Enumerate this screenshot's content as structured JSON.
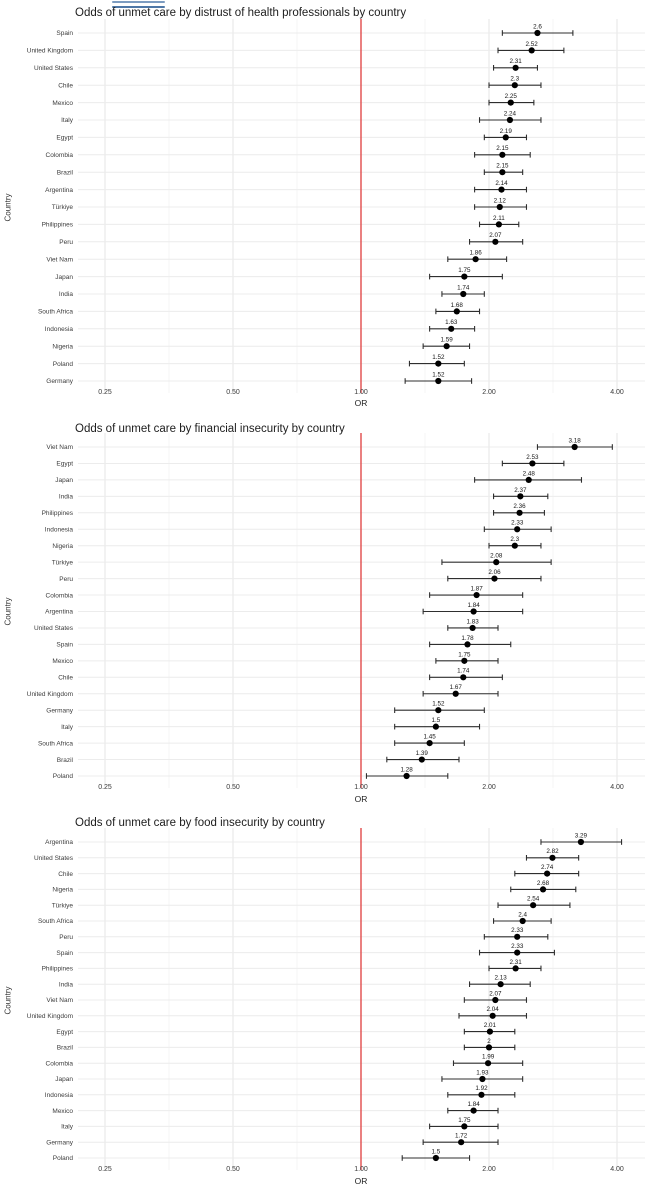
{
  "page": {
    "background": "#ffffff"
  },
  "decoration": {
    "type": "double-horizontal-line"
  },
  "colors": {
    "reference_line": "#e14b4b",
    "point": "#000000",
    "error_bar": "#2f2f2f",
    "grid_row": "#ececec",
    "grid_major": "#e5e5e5",
    "grid_minor": "#f4f4f4",
    "decoration_top": "#7d9cc0",
    "decoration_bottom": "#4e77a6",
    "tick_text": "#3a3a3a",
    "country_text": "#3c3c3c",
    "value_text": "#141414"
  },
  "chart_data": [
    {
      "type": "scatter",
      "subtype": "forest-plot",
      "title": "Odds of unmet care by distrust of health professionals by country",
      "xlabel": "OR",
      "ylabel": "Country",
      "xscale": "log2",
      "xlim": [
        0.21,
        4.6
      ],
      "xticks": [
        0.25,
        0.5,
        1,
        2,
        4
      ],
      "xtick_labels": [
        "0.25",
        "0.50",
        "1.00",
        "2.00",
        "4.00"
      ],
      "refline": 1,
      "grid": true,
      "legend": "none",
      "rows": [
        {
          "country": "Spain",
          "or": 2.6,
          "label": "2.6",
          "lo": 2.15,
          "hi": 3.15
        },
        {
          "country": "United Kingdom",
          "or": 2.52,
          "label": "2.52",
          "lo": 2.1,
          "hi": 3.0
        },
        {
          "country": "United States",
          "or": 2.31,
          "label": "2.31",
          "lo": 2.05,
          "hi": 2.6
        },
        {
          "country": "Chile",
          "or": 2.3,
          "label": "2.3",
          "lo": 2.0,
          "hi": 2.65
        },
        {
          "country": "Mexico",
          "or": 2.25,
          "label": "2.25",
          "lo": 2.0,
          "hi": 2.55
        },
        {
          "country": "Italy",
          "or": 2.24,
          "label": "2.24",
          "lo": 1.9,
          "hi": 2.65
        },
        {
          "country": "Egypt",
          "or": 2.19,
          "label": "2.19",
          "lo": 1.95,
          "hi": 2.45
        },
        {
          "country": "Colombia",
          "or": 2.15,
          "label": "2.15",
          "lo": 1.85,
          "hi": 2.5
        },
        {
          "country": "Brazil",
          "or": 2.15,
          "label": "2.15",
          "lo": 1.95,
          "hi": 2.4
        },
        {
          "country": "Argentina",
          "or": 2.14,
          "label": "2.14",
          "lo": 1.85,
          "hi": 2.45
        },
        {
          "country": "Türkiye",
          "or": 2.12,
          "label": "2.12",
          "lo": 1.85,
          "hi": 2.45
        },
        {
          "country": "Philippines",
          "or": 2.11,
          "label": "2.11",
          "lo": 1.9,
          "hi": 2.35
        },
        {
          "country": "Peru",
          "or": 2.07,
          "label": "2.07",
          "lo": 1.8,
          "hi": 2.4
        },
        {
          "country": "Viet Nam",
          "or": 1.86,
          "label": "1.86",
          "lo": 1.6,
          "hi": 2.2
        },
        {
          "country": "Japan",
          "or": 1.75,
          "label": "1.75",
          "lo": 1.45,
          "hi": 2.15
        },
        {
          "country": "India",
          "or": 1.74,
          "label": "1.74",
          "lo": 1.55,
          "hi": 1.95
        },
        {
          "country": "South Africa",
          "or": 1.68,
          "label": "1.68",
          "lo": 1.5,
          "hi": 1.9
        },
        {
          "country": "Indonesia",
          "or": 1.63,
          "label": "1.63",
          "lo": 1.45,
          "hi": 1.85
        },
        {
          "country": "Nigeria",
          "or": 1.59,
          "label": "1.59",
          "lo": 1.4,
          "hi": 1.8
        },
        {
          "country": "Poland",
          "or": 1.52,
          "label": "1.52",
          "lo": 1.3,
          "hi": 1.75
        },
        {
          "country": "Germany",
          "or": 1.52,
          "label": "1.52",
          "lo": 1.27,
          "hi": 1.82
        }
      ]
    },
    {
      "type": "scatter",
      "subtype": "forest-plot",
      "title": "Odds of unmet care by financial insecurity by country",
      "xlabel": "OR",
      "ylabel": "Country",
      "xscale": "log2",
      "xlim": [
        0.21,
        4.6
      ],
      "xticks": [
        0.25,
        0.5,
        1,
        2,
        4
      ],
      "xtick_labels": [
        "0.25",
        "0.50",
        "1.00",
        "2.00",
        "4.00"
      ],
      "refline": 1,
      "grid": true,
      "legend": "none",
      "rows": [
        {
          "country": "Viet Nam",
          "or": 3.18,
          "label": "3.18",
          "lo": 2.6,
          "hi": 3.9
        },
        {
          "country": "Egypt",
          "or": 2.53,
          "label": "2.53",
          "lo": 2.15,
          "hi": 3.0
        },
        {
          "country": "Japan",
          "or": 2.48,
          "label": "2.48",
          "lo": 1.85,
          "hi": 3.3
        },
        {
          "country": "India",
          "or": 2.37,
          "label": "2.37",
          "lo": 2.05,
          "hi": 2.75
        },
        {
          "country": "Philippines",
          "or": 2.36,
          "label": "2.36",
          "lo": 2.05,
          "hi": 2.7
        },
        {
          "country": "Indonesia",
          "or": 2.33,
          "label": "2.33",
          "lo": 1.95,
          "hi": 2.8
        },
        {
          "country": "Nigeria",
          "or": 2.3,
          "label": "2.3",
          "lo": 2.0,
          "hi": 2.65
        },
        {
          "country": "Türkiye",
          "or": 2.08,
          "label": "2.08",
          "lo": 1.55,
          "hi": 2.8
        },
        {
          "country": "Peru",
          "or": 2.06,
          "label": "2.06",
          "lo": 1.6,
          "hi": 2.65
        },
        {
          "country": "Colombia",
          "or": 1.87,
          "label": "1.87",
          "lo": 1.45,
          "hi": 2.4
        },
        {
          "country": "Argentina",
          "or": 1.84,
          "label": "1.84",
          "lo": 1.4,
          "hi": 2.4
        },
        {
          "country": "United States",
          "or": 1.83,
          "label": "1.83",
          "lo": 1.6,
          "hi": 2.1
        },
        {
          "country": "Spain",
          "or": 1.78,
          "label": "1.78",
          "lo": 1.45,
          "hi": 2.25
        },
        {
          "country": "Mexico",
          "or": 1.75,
          "label": "1.75",
          "lo": 1.5,
          "hi": 2.1
        },
        {
          "country": "Chile",
          "or": 1.74,
          "label": "1.74",
          "lo": 1.45,
          "hi": 2.15
        },
        {
          "country": "United Kingdom",
          "or": 1.67,
          "label": "1.67",
          "lo": 1.4,
          "hi": 2.1
        },
        {
          "country": "Germany",
          "or": 1.52,
          "label": "1.52",
          "lo": 1.2,
          "hi": 1.95
        },
        {
          "country": "Italy",
          "or": 1.5,
          "label": "1.5",
          "lo": 1.2,
          "hi": 1.9
        },
        {
          "country": "South Africa",
          "or": 1.45,
          "label": "1.45",
          "lo": 1.2,
          "hi": 1.75
        },
        {
          "country": "Brazil",
          "or": 1.39,
          "label": "1.39",
          "lo": 1.15,
          "hi": 1.7
        },
        {
          "country": "Poland",
          "or": 1.28,
          "label": "1.28",
          "lo": 1.03,
          "hi": 1.6
        }
      ]
    },
    {
      "type": "scatter",
      "subtype": "forest-plot",
      "title": "Odds of unmet care by food insecurity by country",
      "xlabel": "OR",
      "ylabel": "Country",
      "xscale": "log2",
      "xlim": [
        0.21,
        4.6
      ],
      "xticks": [
        0.25,
        0.5,
        1,
        2,
        4
      ],
      "xtick_labels": [
        "0.25",
        "0.50",
        "1.00",
        "2.00",
        "4.00"
      ],
      "refline": 1,
      "grid": true,
      "legend": "none",
      "rows": [
        {
          "country": "Argentina",
          "or": 3.29,
          "label": "3.29",
          "lo": 2.65,
          "hi": 4.1
        },
        {
          "country": "United States",
          "or": 2.82,
          "label": "2.82",
          "lo": 2.45,
          "hi": 3.25
        },
        {
          "country": "Chile",
          "or": 2.74,
          "label": "2.74",
          "lo": 2.3,
          "hi": 3.25
        },
        {
          "country": "Nigeria",
          "or": 2.68,
          "label": "2.68",
          "lo": 2.25,
          "hi": 3.2
        },
        {
          "country": "Türkiye",
          "or": 2.54,
          "label": "2.54",
          "lo": 2.1,
          "hi": 3.1
        },
        {
          "country": "South Africa",
          "or": 2.4,
          "label": "2.4",
          "lo": 2.05,
          "hi": 2.8
        },
        {
          "country": "Peru",
          "or": 2.33,
          "label": "2.33",
          "lo": 1.95,
          "hi": 2.75
        },
        {
          "country": "Spain",
          "or": 2.33,
          "label": "2.33",
          "lo": 1.9,
          "hi": 2.85
        },
        {
          "country": "Philippines",
          "or": 2.31,
          "label": "2.31",
          "lo": 2.0,
          "hi": 2.65
        },
        {
          "country": "India",
          "or": 2.13,
          "label": "2.13",
          "lo": 1.8,
          "hi": 2.5
        },
        {
          "country": "Viet Nam",
          "or": 2.07,
          "label": "2.07",
          "lo": 1.75,
          "hi": 2.45
        },
        {
          "country": "United Kingdom",
          "or": 2.04,
          "label": "2.04",
          "lo": 1.7,
          "hi": 2.45
        },
        {
          "country": "Egypt",
          "or": 2.01,
          "label": "2.01",
          "lo": 1.75,
          "hi": 2.3
        },
        {
          "country": "Brazil",
          "or": 2.0,
          "label": "2",
          "lo": 1.75,
          "hi": 2.3
        },
        {
          "country": "Colombia",
          "or": 1.99,
          "label": "1.99",
          "lo": 1.65,
          "hi": 2.4
        },
        {
          "country": "Japan",
          "or": 1.93,
          "label": "1.93",
          "lo": 1.55,
          "hi": 2.4
        },
        {
          "country": "Indonesia",
          "or": 1.92,
          "label": "1.92",
          "lo": 1.6,
          "hi": 2.3
        },
        {
          "country": "Mexico",
          "or": 1.84,
          "label": "1.84",
          "lo": 1.6,
          "hi": 2.1
        },
        {
          "country": "Italy",
          "or": 1.75,
          "label": "1.75",
          "lo": 1.45,
          "hi": 2.1
        },
        {
          "country": "Germany",
          "or": 1.72,
          "label": "1.72",
          "lo": 1.4,
          "hi": 2.1
        },
        {
          "country": "Poland",
          "or": 1.5,
          "label": "1.5",
          "lo": 1.25,
          "hi": 1.8
        }
      ]
    }
  ]
}
